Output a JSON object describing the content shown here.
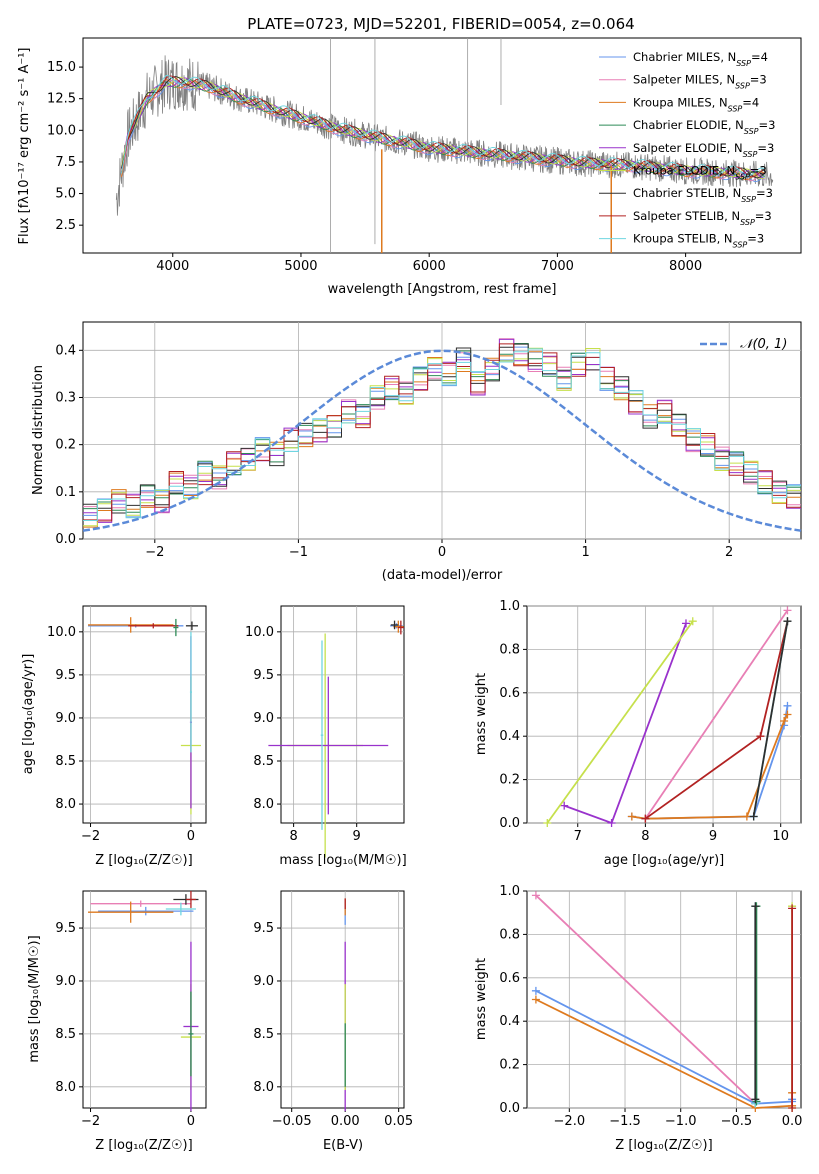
{
  "figure": {
    "title": "PLATE=0723, MJD=52201, FIBERID=0054, z=0.064"
  },
  "models": [
    {
      "name": "Chabrier MILES",
      "nssp": "4",
      "color": "#6495ed"
    },
    {
      "name": "Salpeter MILES",
      "nssp": "3",
      "color": "#e87fb5"
    },
    {
      "name": "Kroupa MILES",
      "nssp": "4",
      "color": "#de7a1f"
    },
    {
      "name": "Chabrier ELODIE",
      "nssp": "3",
      "color": "#2e8b57"
    },
    {
      "name": "Salpeter ELODIE",
      "nssp": "3",
      "color": "#9932cc"
    },
    {
      "name": "Kroupa ELODIE",
      "nssp": "3",
      "color": "#c6e04c"
    },
    {
      "name": "Chabrier STELIB",
      "nssp": "3",
      "color": "#2f2f2f"
    },
    {
      "name": "Salpeter STELIB",
      "nssp": "3",
      "color": "#b22222"
    },
    {
      "name": "Kroupa STELIB",
      "nssp": "3",
      "color": "#6fd6e0"
    }
  ],
  "chart_data": [
    {
      "id": "spectrum",
      "type": "line",
      "xlabel": "wavelength [Angstrom, rest frame]",
      "ylabel": "Flux [fλ10⁻¹⁷ erg cm⁻² s⁻¹ A⁻¹]",
      "xlim": [
        3300,
        8900
      ],
      "ylim": [
        0.3,
        17.3
      ],
      "xticks": [
        "4000",
        "5000",
        "6000",
        "7000",
        "8000"
      ],
      "yticks": [
        "2.5",
        "5.0",
        "7.5",
        "10.0",
        "12.5",
        "15.0"
      ],
      "data_color": "#808080",
      "continuum": {
        "x": [
          3550,
          3650,
          3800,
          3950,
          4100,
          4300,
          4500,
          4800,
          5000,
          5300,
          5600,
          6000,
          6400,
          6800,
          7200,
          7600,
          8000,
          8400,
          8700
        ],
        "y": [
          4.0,
          9.5,
          12.5,
          13.8,
          13.8,
          13.4,
          12.6,
          11.6,
          11.0,
          10.1,
          9.4,
          8.6,
          8.2,
          7.8,
          7.4,
          7.2,
          6.8,
          6.6,
          6.4
        ]
      },
      "legend_position": "upper right"
    },
    {
      "id": "residuals",
      "type": "histogram",
      "xlabel": "(data-model)/error",
      "ylabel": "Normed distribution",
      "xlim": [
        -2.5,
        2.5
      ],
      "ylim": [
        0,
        0.46
      ],
      "xticks": [
        "−2",
        "−1",
        "0",
        "1",
        "2"
      ],
      "yticks": [
        "0.0",
        "0.1",
        "0.2",
        "0.3",
        "0.4"
      ],
      "grid": true,
      "bin_width": 0.1,
      "bin_start": -2.5,
      "histogram": [
        0.05,
        0.06,
        0.08,
        0.07,
        0.09,
        0.08,
        0.12,
        0.11,
        0.14,
        0.13,
        0.16,
        0.17,
        0.19,
        0.18,
        0.21,
        0.22,
        0.23,
        0.24,
        0.27,
        0.26,
        0.3,
        0.32,
        0.31,
        0.34,
        0.36,
        0.35,
        0.38,
        0.33,
        0.36,
        0.4,
        0.39,
        0.38,
        0.37,
        0.34,
        0.37,
        0.38,
        0.34,
        0.32,
        0.29,
        0.26,
        0.27,
        0.24,
        0.21,
        0.2,
        0.17,
        0.16,
        0.14,
        0.12,
        0.1,
        0.09,
        0.1,
        0.08,
        0.09,
        0.07,
        0.08,
        0.06,
        0.05,
        0.05,
        0.04,
        0.04
      ],
      "reference_curve": {
        "label": "𝒩(0, 1)",
        "color": "#5b8ad8",
        "style": "dashed",
        "mu": 0,
        "sigma": 1
      }
    },
    {
      "id": "age-vs-Z",
      "type": "errorbar",
      "xlabel": "Z [log₁₀(Z/Z☉)]",
      "ylabel": "age  [log₁₀(age/yr)]",
      "xlim": [
        -2.15,
        0.3
      ],
      "ylim": [
        7.78,
        10.3
      ],
      "xticks": [
        "−2",
        "0"
      ],
      "yticks": [
        "8.0",
        "8.5",
        "9.0",
        "9.5",
        "10.0"
      ],
      "points": [
        {
          "x": -1.1,
          "y": 10.07,
          "xerr": 0.95,
          "yerr": 0.02,
          "model": 0
        },
        {
          "x": -1.2,
          "y": 10.08,
          "xerr": 0.85,
          "yerr": 0.09,
          "model": 2
        },
        {
          "x": -0.75,
          "y": 10.07,
          "xerr": 0.5,
          "yerr": 0.03,
          "model": 7
        },
        {
          "x": 0.02,
          "y": 10.07,
          "xerr": 0.12,
          "yerr": 0.05,
          "model": 6
        },
        {
          "x": -0.3,
          "y": 10.05,
          "xerr": 0.05,
          "yerr": 0.1,
          "model": 3
        },
        {
          "x": 0.0,
          "y": 8.68,
          "xerr": 0.2,
          "yerr": 0.8,
          "model": 5
        },
        {
          "x": 0.0,
          "y": 8.95,
          "xerr": 0.02,
          "yerr": 1.0,
          "model": 4
        },
        {
          "x": 0.0,
          "y": 9.3,
          "xerr": 0.02,
          "yerr": 0.7,
          "model": 8
        }
      ]
    },
    {
      "id": "age-vs-mass",
      "type": "errorbar",
      "xlabel": "mass [log₁₀(M/M☉)]",
      "ylabel": "",
      "xlim": [
        7.8,
        9.75
      ],
      "ylim": [
        7.78,
        10.3
      ],
      "xticks": [
        "8",
        "9"
      ],
      "yticks": [
        "8.0",
        "8.5",
        "9.0",
        "9.5",
        "10.0"
      ],
      "points": [
        {
          "x": 8.5,
          "y": 8.68,
          "xerr": 0.6,
          "yerr": 1.3,
          "model": 5
        },
        {
          "x": 8.55,
          "y": 8.68,
          "xerr": 0.95,
          "yerr": 0.8,
          "model": 4
        },
        {
          "x": 8.45,
          "y": 8.8,
          "xerr": 0.02,
          "yerr": 1.1,
          "model": 8
        },
        {
          "x": 9.63,
          "y": 10.07,
          "xerr": 0.1,
          "yerr": 0.03,
          "model": 0
        },
        {
          "x": 9.66,
          "y": 10.06,
          "xerr": 0.08,
          "yerr": 0.07,
          "model": 2
        },
        {
          "x": 9.7,
          "y": 10.05,
          "xerr": 0.05,
          "yerr": 0.08,
          "model": 7
        },
        {
          "x": 9.6,
          "y": 10.08,
          "xerr": 0.06,
          "yerr": 0.05,
          "model": 6
        }
      ]
    },
    {
      "id": "weight-vs-age",
      "type": "line",
      "xlabel": "age  [log₁₀(age/yr)]",
      "ylabel": "mass weight",
      "xlim": [
        6.25,
        10.3
      ],
      "ylim": [
        0,
        1
      ],
      "xticks": [
        "7",
        "8",
        "9",
        "10"
      ],
      "yticks": [
        "0.0",
        "0.2",
        "0.4",
        "0.6",
        "0.8",
        "1.0"
      ],
      "grid": true,
      "series": [
        {
          "model": 0,
          "x": [
            7.8,
            8.0,
            9.6,
            10.05,
            10.1
          ],
          "y": [
            0.03,
            0.02,
            0.03,
            0.45,
            0.54
          ]
        },
        {
          "model": 2,
          "x": [
            7.8,
            8.0,
            9.5,
            10.05,
            10.1
          ],
          "y": [
            0.03,
            0.02,
            0.03,
            0.47,
            0.5
          ]
        },
        {
          "model": 1,
          "x": [
            8.0,
            10.1
          ],
          "y": [
            0.02,
            0.98
          ]
        },
        {
          "model": 7,
          "x": [
            8.0,
            9.7,
            10.1
          ],
          "y": [
            0.02,
            0.4,
            0.93
          ]
        },
        {
          "model": 4,
          "x": [
            6.8,
            7.5,
            8.6
          ],
          "y": [
            0.08,
            0.0,
            0.92
          ]
        },
        {
          "model": 5,
          "x": [
            6.55,
            8.7
          ],
          "y": [
            0.0,
            0.93
          ]
        },
        {
          "model": 8,
          "x": [
            9.6,
            10.1
          ],
          "y": [
            0.03,
            0.93
          ]
        },
        {
          "model": 6,
          "x": [
            9.6,
            10.1
          ],
          "y": [
            0.03,
            0.93
          ]
        }
      ]
    },
    {
      "id": "mass-vs-Z",
      "type": "errorbar",
      "xlabel": "Z [log₁₀(Z/Z☉)]",
      "ylabel": "mass [log₁₀(M/M☉)]",
      "xlim": [
        -2.15,
        0.3
      ],
      "ylim": [
        7.8,
        9.85
      ],
      "xticks": [
        "−2",
        "0"
      ],
      "yticks": [
        "8.0",
        "8.5",
        "9.0",
        "9.5"
      ],
      "points": [
        {
          "x": -1.0,
          "y": 9.73,
          "xerr": 1.0,
          "yerr": 0.03,
          "model": 1
        },
        {
          "x": -0.9,
          "y": 9.66,
          "xerr": 0.95,
          "yerr": 0.04,
          "model": 0
        },
        {
          "x": -1.2,
          "y": 9.65,
          "xerr": 0.85,
          "yerr": 0.1,
          "model": 2
        },
        {
          "x": -0.2,
          "y": 9.68,
          "xerr": 0.3,
          "yerr": 0.06,
          "model": 8
        },
        {
          "x": -0.1,
          "y": 9.77,
          "xerr": 0.25,
          "yerr": 0.05,
          "model": 6
        },
        {
          "x": 0.0,
          "y": 9.77,
          "xerr": 0.1,
          "yerr": 0.08,
          "model": 7
        },
        {
          "x": 0.0,
          "y": 8.47,
          "xerr": 0.2,
          "yerr": 0.5,
          "model": 5
        },
        {
          "x": 0.0,
          "y": 8.57,
          "xerr": 0.15,
          "yerr": 0.8,
          "model": 4
        },
        {
          "x": 0.0,
          "y": 8.5,
          "xerr": 0.05,
          "yerr": 0.4,
          "model": 3
        }
      ]
    },
    {
      "id": "mass-vs-EBV",
      "type": "errorbar",
      "xlabel": "E(B-V)",
      "ylabel": "",
      "xlim": [
        -0.06,
        0.055
      ],
      "ylim": [
        7.8,
        9.85
      ],
      "xticks": [
        "−0.05",
        "0.00",
        "0.05"
      ],
      "yticks": [
        "8.0",
        "8.5",
        "9.0",
        "9.5"
      ],
      "points": [
        {
          "x": 0.0,
          "y": 8.57,
          "xerr": 0.0,
          "yerr": 0.8,
          "model": 4
        },
        {
          "x": 0.0,
          "y": 8.47,
          "xerr": 0.0,
          "yerr": 0.5,
          "model": 5
        },
        {
          "x": 0.0,
          "y": 9.65,
          "xerr": 0.0,
          "yerr": 0.12,
          "model": 0
        },
        {
          "x": 0.0,
          "y": 9.7,
          "xerr": 0.0,
          "yerr": 0.08,
          "model": 2
        },
        {
          "x": 0.0,
          "y": 9.73,
          "xerr": 0.0,
          "yerr": 0.05,
          "model": 7
        },
        {
          "x": 0.0,
          "y": 8.3,
          "xerr": 0.0,
          "yerr": 0.3,
          "model": 3
        }
      ]
    },
    {
      "id": "weight-vs-Z",
      "type": "line",
      "xlabel": "Z [log₁₀(Z/Z☉)]",
      "ylabel": "mass weight",
      "xlim": [
        -2.38,
        0.08
      ],
      "ylim": [
        0,
        1
      ],
      "xticks": [
        "−2.0",
        "−1.5",
        "−1.0",
        "−0.5",
        "0.0"
      ],
      "yticks": [
        "0.0",
        "0.2",
        "0.4",
        "0.6",
        "0.8",
        "1.0"
      ],
      "grid": true,
      "series": [
        {
          "model": 1,
          "x": [
            -2.3,
            -0.33
          ],
          "y": [
            0.98,
            0.02
          ]
        },
        {
          "model": 0,
          "x": [
            -2.3,
            -0.33,
            0.0,
            0.0
          ],
          "y": [
            0.54,
            0.02,
            0.03,
            0.04
          ]
        },
        {
          "model": 2,
          "x": [
            -2.3,
            -0.33,
            0.0,
            0.0
          ],
          "y": [
            0.5,
            0.0,
            0.01,
            0.07
          ]
        },
        {
          "model": 8,
          "x": [
            -0.33,
            -0.33,
            -0.32
          ],
          "y": [
            0.02,
            0.93,
            0.03
          ]
        },
        {
          "model": 3,
          "x": [
            -0.32,
            -0.32
          ],
          "y": [
            0.03,
            0.93
          ]
        },
        {
          "model": 6,
          "x": [
            -0.33,
            -0.33
          ],
          "y": [
            0.04,
            0.93
          ]
        },
        {
          "model": 5,
          "x": [
            0.0,
            0.0
          ],
          "y": [
            0.0,
            0.93
          ]
        },
        {
          "model": 7,
          "x": [
            0.0,
            0.0
          ],
          "y": [
            0.0,
            0.92
          ]
        }
      ]
    }
  ]
}
